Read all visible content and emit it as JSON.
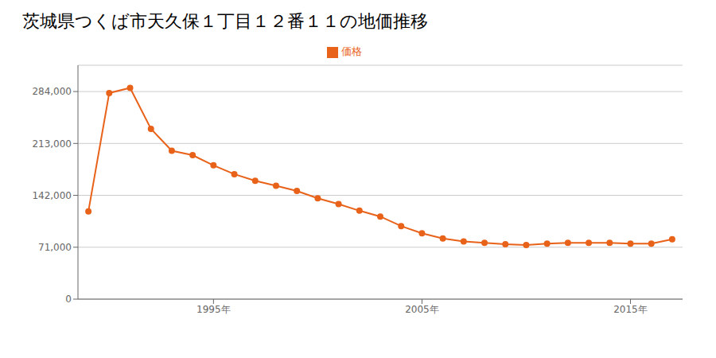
{
  "chart_data": {
    "type": "line",
    "title": "茨城県つくば市天久保１丁目１２番１１の地価推移",
    "x": [
      1989,
      1990,
      1991,
      1992,
      1993,
      1994,
      1995,
      1996,
      1997,
      1998,
      1999,
      2000,
      2001,
      2002,
      2003,
      2004,
      2005,
      2006,
      2007,
      2008,
      2009,
      2010,
      2011,
      2012,
      2013,
      2014,
      2015,
      2016,
      2017
    ],
    "series": [
      {
        "name": "価格",
        "color": "#e8621a",
        "marker": "circle",
        "values": [
          120000,
          282000,
          289000,
          233000,
          203000,
          197000,
          183000,
          171000,
          162000,
          155000,
          148000,
          138000,
          130000,
          121000,
          113000,
          100000,
          90000,
          83000,
          79000,
          77000,
          75000,
          74000,
          76000,
          77000,
          77000,
          77000,
          76000,
          76000,
          82000
        ]
      }
    ],
    "xlim": [
      1988.5,
      2017.5
    ],
    "xticks": [
      {
        "value": 1995,
        "label": "1995年"
      },
      {
        "value": 2005,
        "label": "2005年"
      },
      {
        "value": 2015,
        "label": "2015年"
      }
    ],
    "ylim": [
      0,
      320000
    ],
    "yticks": [
      0,
      {
        "value": 71000,
        "label": "71,000"
      },
      {
        "value": 142000,
        "label": "142,000"
      },
      {
        "value": 213000,
        "label": "213,000"
      },
      {
        "value": 284000,
        "label": "284,000"
      }
    ],
    "grid": true,
    "legend": "top"
  }
}
